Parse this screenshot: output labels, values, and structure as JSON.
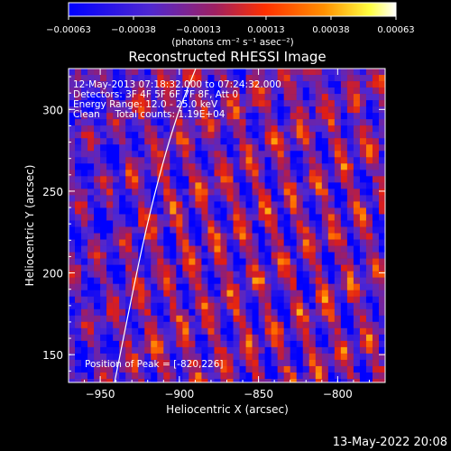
{
  "chart_data": {
    "type": "heatmap",
    "title": "Reconstructed RHESSI Image",
    "xlabel": "Heliocentric X (arcsec)",
    "ylabel": "Heliocentric Y (arcsec)",
    "xlim": [
      -970,
      -770
    ],
    "ylim": [
      133,
      325
    ],
    "x_ticks": [
      -950,
      -900,
      -850,
      -800
    ],
    "x_tick_labels": [
      "−950",
      "−900",
      "−850",
      "−800"
    ],
    "y_ticks": [
      150,
      200,
      250,
      300
    ],
    "y_tick_labels": [
      "150",
      "200",
      "250",
      "300"
    ],
    "colorbar": {
      "min": -0.00063,
      "max": 0.00063,
      "ticks": [
        -0.00063,
        -0.00038,
        -0.00013,
        0.00013,
        0.00038,
        0.00063
      ],
      "tick_labels": [
        "−0.00063",
        "−0.00038",
        "−0.00013",
        "0.00013",
        "0.00038",
        "0.00063"
      ],
      "unit_label": "(photons cm⁻² s⁻¹ asec⁻²)",
      "colors": [
        "#0000ff",
        "#6020c0",
        "#a02040",
        "#ff4000",
        "#ff9000",
        "#ffff40",
        "#ffffff"
      ]
    },
    "annotations": [
      "12-May-2013 07:18:32.000 to 07:24:32.000",
      "Detectors: 3F 4F 5F 6F 7F 8F, Att 0",
      "Energy Range: 12.0 - 25.0 keV",
      "Clean     Total counts: 1.19E+04",
      "Position of Peak = [-820,226]"
    ],
    "peak": {
      "x": -820,
      "y": 226
    },
    "grid": false,
    "limb_curve_color": "#ffffff"
  },
  "footer": {
    "timestamp": "13-May-2022 20:08"
  }
}
